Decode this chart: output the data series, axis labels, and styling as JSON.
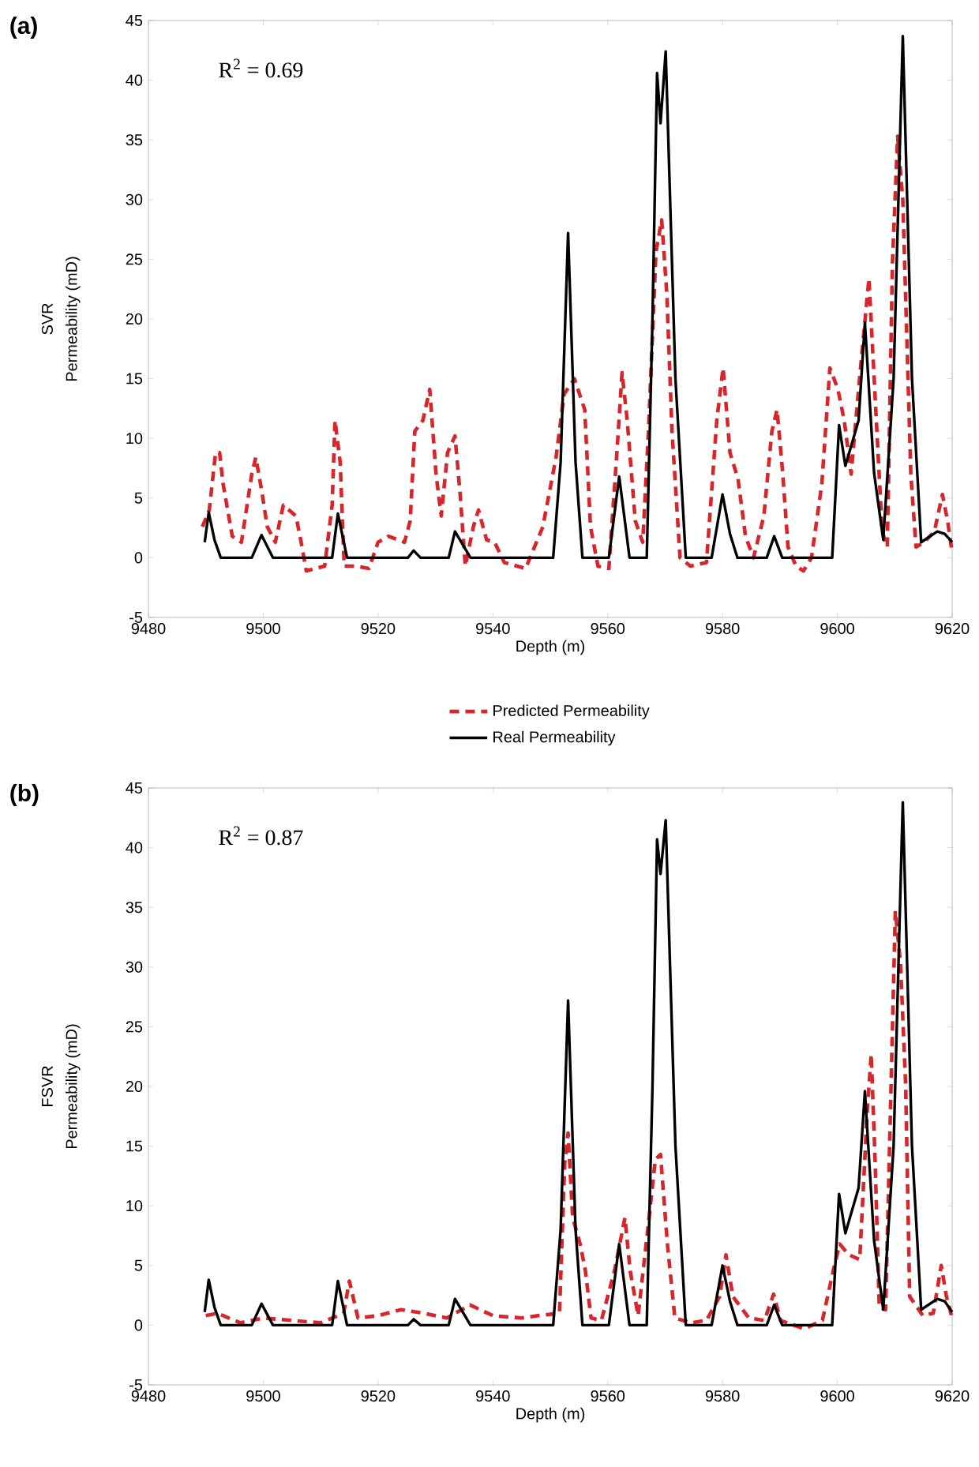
{
  "chart_data": [
    {
      "type": "line",
      "title": "(a)",
      "xlabel": "Depth (m)",
      "ylabel": "Permeability (mD)",
      "annotations": [
        "SVR",
        "R$^{2}$ = 0.69"
      ],
      "legend": "bottom",
      "xlim": [
        9480,
        9620
      ],
      "xticks": [
        9480,
        9500,
        9520,
        9540,
        9560,
        9580,
        9600,
        9620
      ],
      "ylim": [
        -5,
        45
      ],
      "yticks": [
        -5,
        0,
        5,
        10,
        15,
        20,
        25,
        30,
        35,
        40,
        45
      ],
      "series": [
        {
          "name": "Predicted Permeability",
          "color": "#d7262b",
          "line_style": "dashed",
          "x": [
            9489.4,
            9490.6,
            9491.7,
            9492.4,
            9493,
            9494.6,
            9496.2,
            9498,
            9498.7,
            9499.7,
            9500.7,
            9502.1,
            9503.5,
            9505.7,
            9506.6,
            9507.5,
            9510.7,
            9512,
            9512.5,
            9513.4,
            9514.1,
            9516.1,
            9518.4,
            9520,
            9521.8,
            9524.6,
            9525.6,
            9526.4,
            9527.8,
            9529,
            9530.1,
            9531,
            9532.1,
            9533.4,
            9534.3,
            9535.2,
            9536.6,
            9537.5,
            9538.9,
            9540.3,
            9542,
            9545.7,
            9548.7,
            9551,
            9552.4,
            9554.2,
            9556,
            9557,
            9558.3,
            9560.2,
            9561.6,
            9562.5,
            9563.4,
            9564.8,
            9566.1,
            9567.1,
            9568.4,
            9569.4,
            9570.3,
            9571.2,
            9572.6,
            9574.4,
            9577.2,
            9579,
            9580.1,
            9581.3,
            9582.7,
            9584,
            9585.4,
            9587.2,
            9588.6,
            9589.5,
            9590.5,
            9591.4,
            9592.8,
            9594.1,
            9595.5,
            9597.3,
            9598.7,
            9600.1,
            9601.2,
            9602.4,
            9603.7,
            9605.5,
            9606.6,
            9607.8,
            9608.7,
            9609.6,
            9610.5,
            9611.4,
            9612.8,
            9613.7,
            9615.1,
            9616.9,
            9618.3,
            9619.2,
            9620
          ],
          "values": [
            2.6,
            4,
            8.8,
            8.8,
            6.2,
            1.8,
            1.3,
            7,
            8.4,
            5.7,
            2.6,
            1.3,
            4.4,
            3.5,
            1.3,
            -1.1,
            -0.7,
            4.4,
            11.5,
            8,
            -0.7,
            -0.7,
            -0.9,
            1.3,
            1.8,
            1.3,
            3.1,
            10.6,
            11.5,
            14.1,
            7,
            3.5,
            8.8,
            10.2,
            5.3,
            -0.7,
            2.6,
            4,
            1.5,
            1.3,
            -0.4,
            -0.9,
            2.6,
            8.4,
            13.7,
            15,
            12.4,
            2.6,
            -0.7,
            -0.9,
            8.8,
            15.5,
            11.5,
            3.1,
            1.3,
            10.6,
            25.6,
            28.3,
            22.1,
            10.6,
            0,
            -0.7,
            -0.4,
            11.5,
            15.9,
            8.8,
            6.6,
            1.8,
            0,
            3.5,
            10.6,
            12.4,
            7,
            0.9,
            -0.7,
            -1.1,
            0,
            6.2,
            15.9,
            14.1,
            11.5,
            7,
            14.1,
            23.4,
            13.3,
            2.2,
            0.9,
            24.7,
            35.3,
            30,
            7,
            0.9,
            1.3,
            2.2,
            5.3,
            3.1,
            0.4
          ]
        },
        {
          "name": "Real Permeability",
          "color": "#000000",
          "line_style": "solid",
          "x": [
            9489.8,
            9490.5,
            9491.5,
            9492.6,
            9498,
            9499.7,
            9501.7,
            9512,
            9513,
            9514.6,
            9525.2,
            9526.2,
            9527.4,
            9532.3,
            9533.4,
            9536.1,
            9550.5,
            9551.8,
            9553.1,
            9554.4,
            9555.6,
            9560.2,
            9562,
            9563.8,
            9566.8,
            9567.8,
            9568.6,
            9569.2,
            9570.1,
            9571.8,
            9573.6,
            9578.1,
            9580,
            9581.3,
            9582.6,
            9587.7,
            9589,
            9590.4,
            9599.1,
            9600.3,
            9601.4,
            9603.7,
            9604.8,
            9606.4,
            9608,
            9609.8,
            9611.4,
            9613,
            9614.6,
            9617.4,
            9618.7,
            9620
          ],
          "values": [
            1.3,
            3.8,
            1.5,
            0,
            0,
            1.9,
            0,
            0,
            3.7,
            0,
            0,
            0.6,
            0,
            0,
            2.2,
            0,
            0,
            8,
            27.2,
            8,
            0,
            0,
            6.8,
            0,
            0,
            20,
            40.6,
            36.4,
            42.4,
            15,
            0,
            0,
            5.3,
            2,
            0,
            0,
            1.8,
            0,
            0,
            11.1,
            7.7,
            11.5,
            19.7,
            7.1,
            1.5,
            15,
            43.7,
            15,
            1.3,
            2.2,
            2,
            1.3
          ]
        }
      ]
    },
    {
      "type": "line",
      "title": "(b)",
      "xlabel": "Depth (m)",
      "ylabel": "Permeability (mD)",
      "annotations": [
        "FSVR",
        "R$^{2}$ = 0.87"
      ],
      "xlim": [
        9480,
        9620
      ],
      "xticks": [
        9480,
        9500,
        9520,
        9540,
        9560,
        9580,
        9600,
        9620
      ],
      "ylim": [
        -5,
        45
      ],
      "yticks": [
        -5,
        0,
        5,
        10,
        15,
        20,
        25,
        30,
        35,
        40,
        45
      ],
      "series": [
        {
          "color": "#d7262b",
          "line_style": "dashed",
          "x": [
            9490,
            9492,
            9496,
            9500,
            9505,
            9510,
            9514,
            9515,
            9516.5,
            9520,
            9524,
            9528,
            9532,
            9536,
            9540,
            9545,
            9547.9,
            9551.6,
            9552.5,
            9553.1,
            9553.9,
            9555.2,
            9556.1,
            9557.1,
            9558.9,
            9561.2,
            9563,
            9563.9,
            9565.3,
            9567.2,
            9568.3,
            9569.2,
            9570.4,
            9571.7,
            9574.5,
            9577.2,
            9579.5,
            9580.6,
            9581.8,
            9584.6,
            9587.3,
            9588.9,
            9590.1,
            9594.2,
            9597.4,
            9599.3,
            9600.4,
            9602,
            9603.9,
            9605.2,
            9605.9,
            9606.6,
            9607.3,
            9608.4,
            9610.1,
            9611,
            9611.9,
            9612.6,
            9614.9,
            9616.7,
            9618.1,
            9619,
            9620
          ],
          "values": [
            0.8,
            1,
            0.2,
            0.6,
            0.4,
            0.2,
            1,
            3.7,
            0.6,
            0.8,
            1.3,
            1,
            0.6,
            1.7,
            0.8,
            0.6,
            0.8,
            1,
            13.5,
            16.1,
            9,
            6.8,
            4.6,
            0.6,
            0.4,
            4.6,
            9,
            4.6,
            0.8,
            9,
            13.9,
            14.3,
            6.8,
            0.6,
            0.2,
            0.4,
            2.4,
            5.9,
            2.4,
            0.6,
            0.4,
            2.6,
            0.4,
            -0.3,
            0.4,
            4.6,
            6.8,
            5.9,
            5.5,
            17.9,
            22.7,
            13.5,
            1.5,
            1.3,
            34.7,
            30.3,
            20.1,
            2.4,
            0.8,
            1,
            5,
            2.4,
            0.6
          ]
        },
        {
          "color": "#000000",
          "line_style": "solid",
          "x": [
            9489.8,
            9490.5,
            9491.5,
            9492.6,
            9498,
            9499.7,
            9501.7,
            9512,
            9513,
            9514.6,
            9525.2,
            9526.2,
            9527.4,
            9532.3,
            9533.4,
            9536.1,
            9550.5,
            9551.8,
            9553.1,
            9554.4,
            9555.6,
            9560.2,
            9562,
            9563.8,
            9566.8,
            9567.8,
            9568.6,
            9569.2,
            9570.1,
            9571.8,
            9573.6,
            9578.1,
            9580,
            9581.3,
            9582.6,
            9587.7,
            9589,
            9590.4,
            9599.1,
            9600.3,
            9601.4,
            9603.7,
            9604.8,
            9606.4,
            9608,
            9609.8,
            9611.4,
            9613,
            9614.6,
            9617.4,
            9618.7,
            9620
          ],
          "values": [
            1.1,
            3.8,
            1.5,
            0,
            0,
            1.8,
            0,
            0,
            3.7,
            0,
            0,
            0.5,
            0,
            0,
            2.2,
            0,
            0,
            8,
            27.2,
            8,
            0,
            0,
            6.8,
            0,
            0,
            20,
            40.7,
            37.8,
            42.3,
            15,
            0,
            0,
            5,
            2,
            0,
            0,
            1.7,
            0,
            0,
            11,
            7.7,
            11.5,
            19.6,
            7.1,
            1.3,
            15,
            43.8,
            15,
            1.3,
            2.2,
            2,
            1.1
          ]
        }
      ]
    }
  ]
}
